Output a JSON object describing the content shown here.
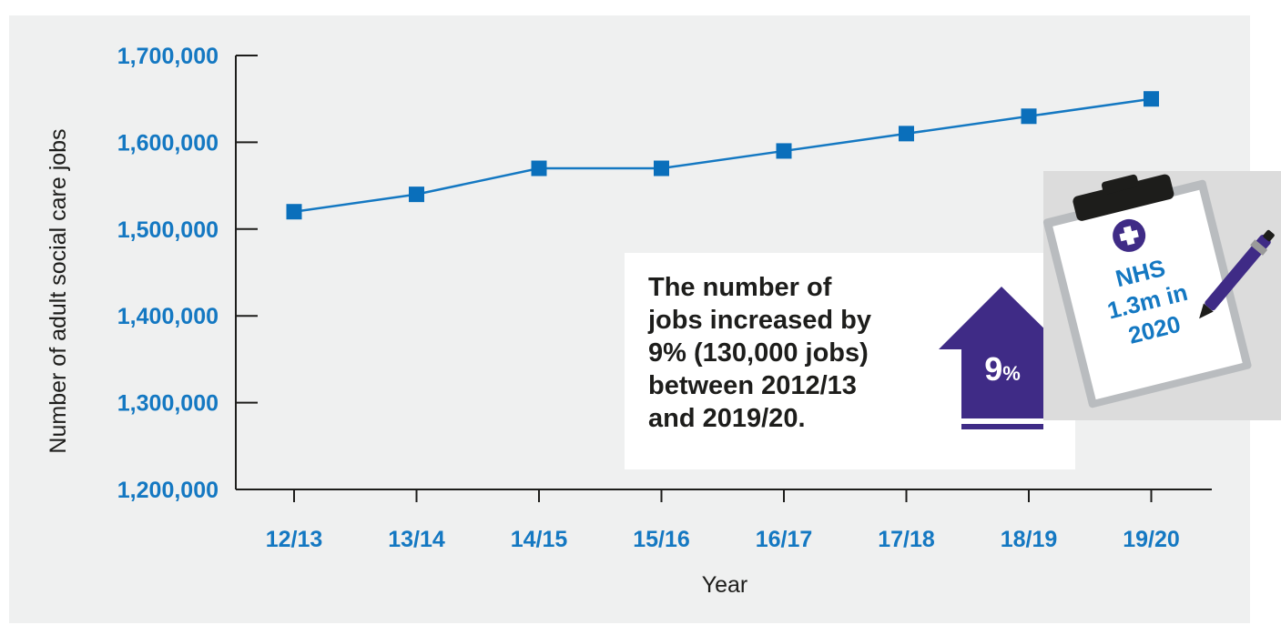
{
  "colors": {
    "axis_tick": "#1478c2",
    "line": "#1478c2",
    "marker": "#0a6fbb",
    "arrow": "#3f2b86",
    "clipboard_text": "#1478c2",
    "clipboard_badge": "#3f2b86",
    "callout_text": "#1d1d1b"
  },
  "chart_data": {
    "type": "line",
    "xlabel": "Year",
    "ylabel": "Number of adult social care jobs",
    "categories": [
      "12/13",
      "13/14",
      "14/15",
      "15/16",
      "16/17",
      "17/18",
      "18/19",
      "19/20"
    ],
    "yticks": [
      "1,200,000",
      "1,300,000",
      "1,400,000",
      "1,500,000",
      "1,600,000",
      "1,700,000"
    ],
    "ylim": [
      1200000,
      1700000
    ],
    "values": [
      1520000,
      1540000,
      1570000,
      1570000,
      1590000,
      1610000,
      1630000,
      1650000
    ],
    "grid": false,
    "legend": "none"
  },
  "callout": {
    "text": "The number of\njobs increased by\n9% (130,000 jobs)\nbetween 2012/13\nand 2019/20."
  },
  "arrow_badge": {
    "value": "9",
    "unit": "%",
    "icon": "up-arrow-icon"
  },
  "clipboard": {
    "icon": "medical-cross-icon",
    "line1": "NHS",
    "line2": "1.3m in",
    "line3": "2020",
    "pen_icon": "pen-icon"
  }
}
